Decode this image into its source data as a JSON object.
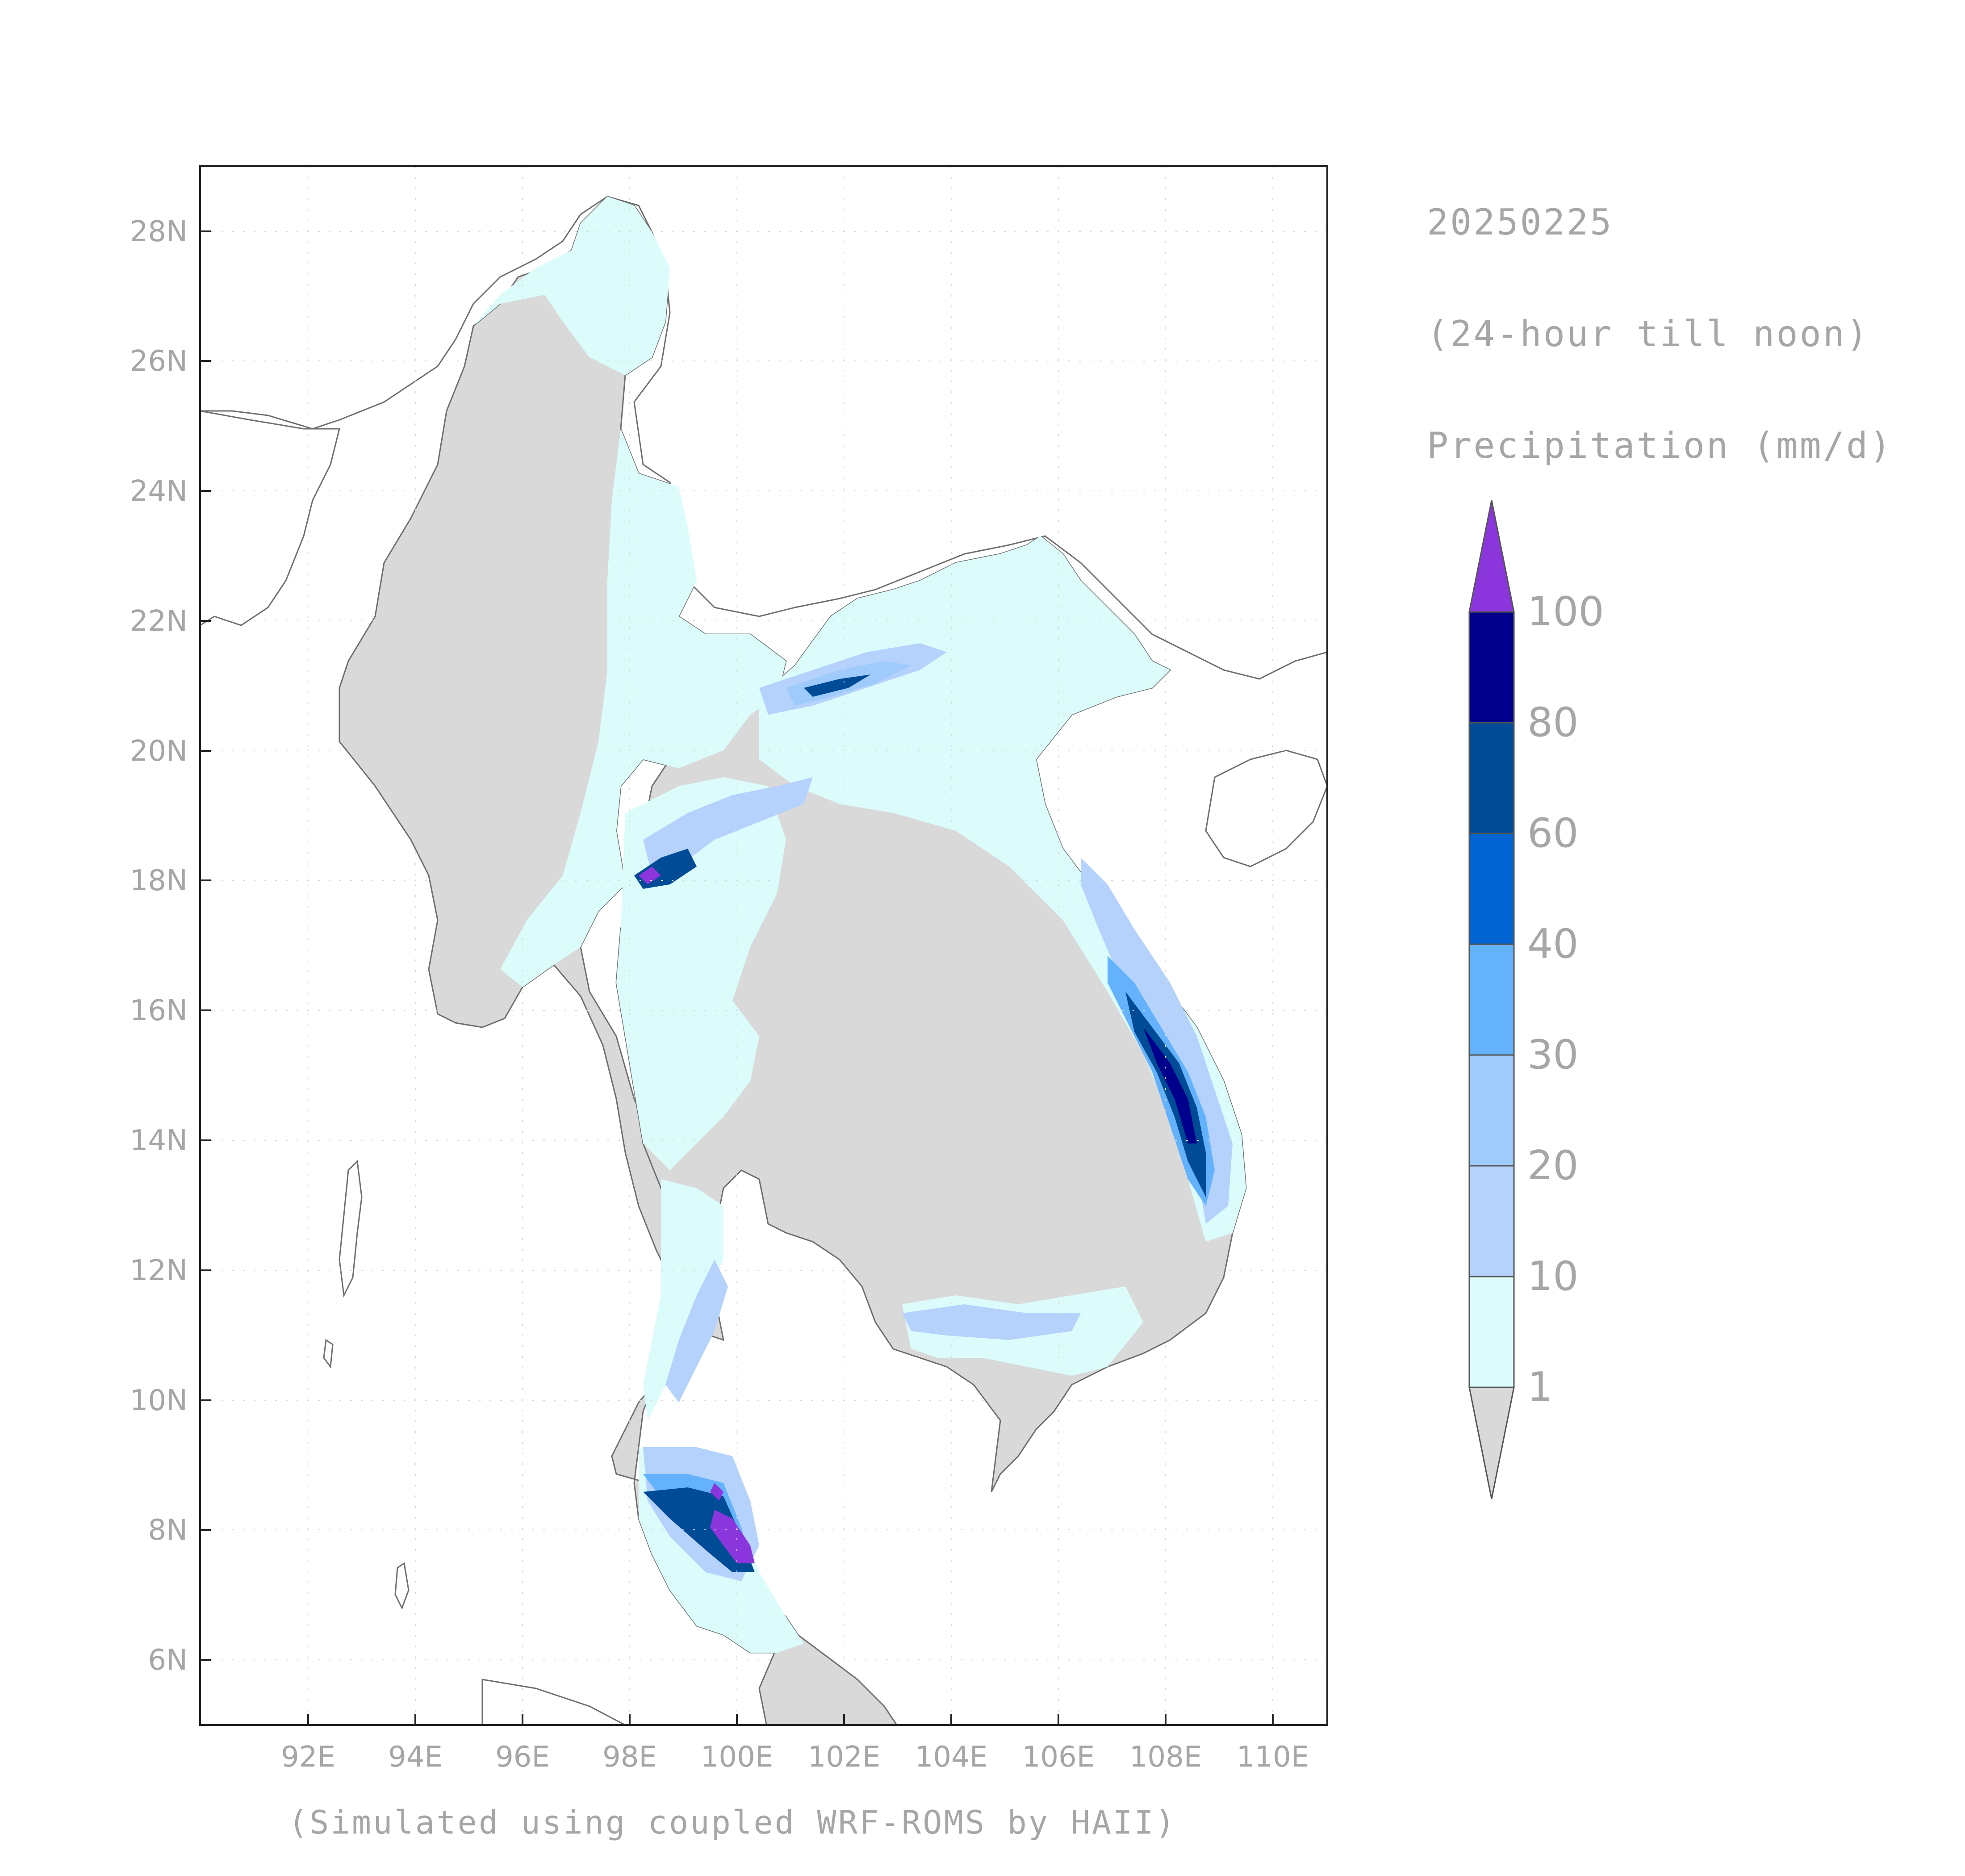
{
  "map": {
    "date": "20250225",
    "period": "(24-hour till noon)",
    "variable": "Precipitation (mm/d)",
    "footer": "(Simulated using coupled WRF-ROMS by HAII)",
    "lat_ticks": [
      "28N",
      "26N",
      "24N",
      "22N",
      "20N",
      "18N",
      "16N",
      "14N",
      "12N",
      "10N",
      "8N",
      "6N"
    ],
    "lon_ticks": [
      "92E",
      "94E",
      "96E",
      "98E",
      "100E",
      "102E",
      "104E",
      "106E",
      "108E",
      "110E"
    ],
    "extent": {
      "lon_min": 90.2,
      "lon_max": 111.0,
      "lat_min": 5.0,
      "lat_max": 29.0
    },
    "colorbar": {
      "labels": [
        "1",
        "10",
        "20",
        "30",
        "40",
        "60",
        "80",
        "100"
      ],
      "colors": {
        "below_1": "#d9d9d9",
        "1-10": "#dcfcfc",
        "10-20": "#b5d2fc",
        "20-30": "#9ecbfc",
        "30-40": "#64b2fc",
        "40-60": "#0064d2",
        "60-80": "#004b96",
        "80-100": "#00008c",
        "above_100": "#8b35dc"
      }
    }
  }
}
